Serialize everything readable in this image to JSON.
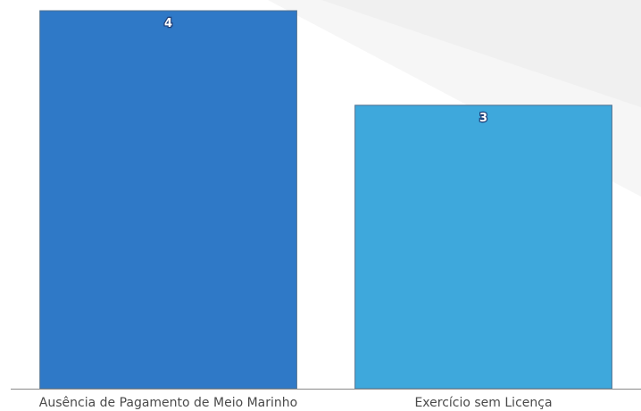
{
  "chart_data": {
    "type": "bar",
    "categories": [
      "Ausência de Pagamento de Meio Marinho",
      "Exercício sem Licença"
    ],
    "values": [
      4,
      3
    ],
    "title": "",
    "xlabel": "",
    "ylabel": "",
    "ylim": [
      0,
      4
    ],
    "grid": false,
    "legend": "none",
    "colors": [
      "#2f79c7",
      "#3ea8dc"
    ],
    "bar_stroke": "#4d6f8f",
    "axis_color": "#8a8a8a",
    "data_labels": [
      "4",
      "3"
    ]
  }
}
